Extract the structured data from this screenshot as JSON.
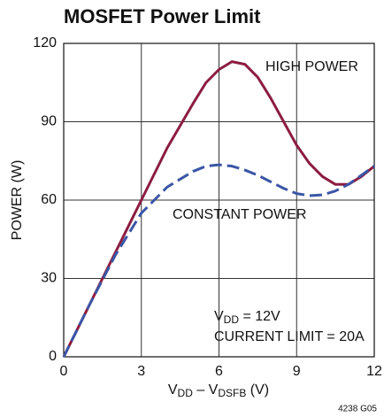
{
  "chart_data": {
    "type": "line",
    "title": "MOSFET Power Limit",
    "xlabel": [
      "V",
      "DD",
      " – V",
      "DSFB",
      " (V)"
    ],
    "ylabel": "POWER (W)",
    "x": [
      0,
      1,
      2,
      3,
      4,
      5,
      5.5,
      6,
      6.5,
      7,
      7.5,
      8,
      8.5,
      9,
      9.5,
      10,
      10.5,
      11,
      11.5,
      12
    ],
    "series": [
      {
        "name": "HIGH POWER",
        "color": "#8c1d40",
        "dashed": false,
        "values": [
          0,
          20,
          40,
          60,
          80,
          97,
          105,
          110,
          113,
          112,
          107,
          99,
          90,
          81,
          74,
          69,
          66,
          66,
          69,
          73
        ]
      },
      {
        "name": "CONSTANT POWER",
        "color": "#3b56a6",
        "dashed": true,
        "values": [
          0,
          20,
          39,
          55,
          65,
          71,
          73,
          73.5,
          73,
          71.5,
          69.5,
          67,
          64.5,
          62.5,
          61.7,
          62,
          63.5,
          66,
          69.5,
          73
        ]
      }
    ],
    "annotations": [
      [
        "V",
        "DD",
        " = 12V"
      ],
      "CURRENT LIMIT = 20A"
    ],
    "footnote": "4238 G05",
    "xlim": [
      0,
      12
    ],
    "xticks": [
      0,
      3,
      6,
      9,
      12
    ],
    "ylim": [
      0,
      120
    ],
    "yticks": [
      0,
      30,
      60,
      90,
      120
    ],
    "grid": true
  }
}
